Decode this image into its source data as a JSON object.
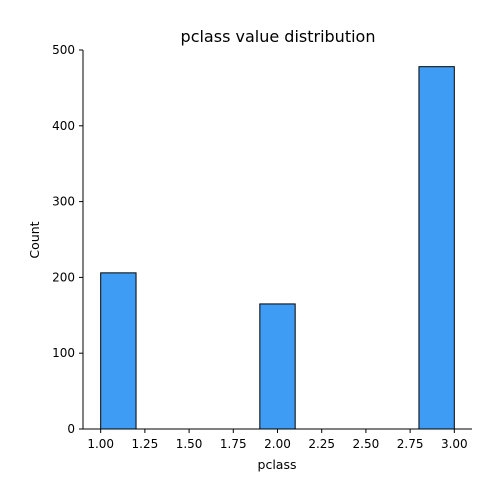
{
  "chart_data": {
    "type": "bar",
    "title": "pclass value distribution",
    "xlabel": "pclass",
    "ylabel": "Count",
    "x_ticks": [
      1.0,
      1.25,
      1.5,
      1.75,
      2.0,
      2.25,
      2.5,
      2.75,
      3.0
    ],
    "x_tick_labels": [
      "1.00",
      "1.25",
      "1.50",
      "1.75",
      "2.00",
      "2.25",
      "2.50",
      "2.75",
      "3.00"
    ],
    "y_ticks": [
      0,
      100,
      200,
      300,
      400,
      500
    ],
    "y_tick_labels": [
      "0",
      "100",
      "200",
      "300",
      "400",
      "500"
    ],
    "xlim": [
      0.9,
      3.1
    ],
    "ylim": [
      0,
      500
    ],
    "bins": [
      {
        "x_start": 1.0,
        "x_end": 1.2,
        "count": 206
      },
      {
        "x_start": 1.2,
        "x_end": 1.4,
        "count": 0
      },
      {
        "x_start": 1.4,
        "x_end": 1.6,
        "count": 0
      },
      {
        "x_start": 1.6,
        "x_end": 1.8,
        "count": 0
      },
      {
        "x_start": 1.8,
        "x_end": 2.0,
        "count": 0
      },
      {
        "x_start": 1.9,
        "x_end": 2.1,
        "count": 165
      },
      {
        "x_start": 2.1,
        "x_end": 2.3,
        "count": 0
      },
      {
        "x_start": 2.3,
        "x_end": 2.5,
        "count": 0
      },
      {
        "x_start": 2.5,
        "x_end": 2.7,
        "count": 0
      },
      {
        "x_start": 2.8,
        "x_end": 3.0,
        "count": 478
      }
    ],
    "bar_color": "#3f9cf5",
    "bar_edge_color": "#000000",
    "grid": false,
    "legend": "none"
  }
}
